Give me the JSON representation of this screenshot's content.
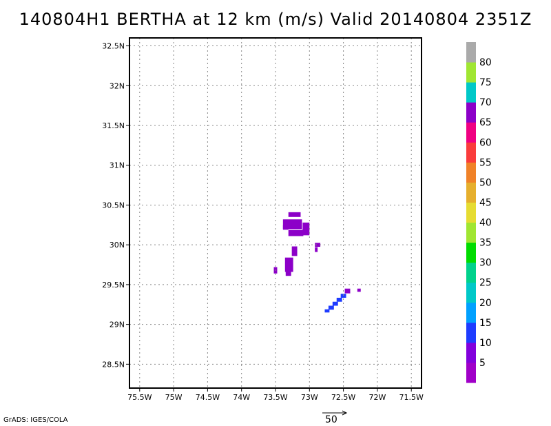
{
  "title": "140804H1 BERTHA at 12 km (m/s) Valid 20140804 2351Z",
  "credit": "GrADS: IGES/COLA",
  "reference_vector_label": "50",
  "map": {
    "lon_range": [
      -75.65,
      -71.35
    ],
    "lat_range": [
      28.2,
      32.6
    ],
    "lon_ticks": [
      {
        "value": -75.5,
        "label": "75.5W"
      },
      {
        "value": -75,
        "label": "75W"
      },
      {
        "value": -74.5,
        "label": "74.5W"
      },
      {
        "value": -74,
        "label": "74W"
      },
      {
        "value": -73.5,
        "label": "73.5W"
      },
      {
        "value": -73,
        "label": "73W"
      },
      {
        "value": -72.5,
        "label": "72.5W"
      },
      {
        "value": -72,
        "label": "72W"
      },
      {
        "value": -71.5,
        "label": "71.5W"
      }
    ],
    "lat_ticks": [
      {
        "value": 28.5,
        "label": "28.5N"
      },
      {
        "value": 29,
        "label": "29N"
      },
      {
        "value": 29.5,
        "label": "29.5N"
      },
      {
        "value": 30,
        "label": "30N"
      },
      {
        "value": 30.5,
        "label": "30.5N"
      },
      {
        "value": 31,
        "label": "31N"
      },
      {
        "value": 31.5,
        "label": "31.5N"
      },
      {
        "value": 32,
        "label": "32N"
      },
      {
        "value": 32.5,
        "label": "32.5N"
      }
    ],
    "grid": true
  },
  "colorbar": {
    "labels": [
      "5",
      "10",
      "15",
      "20",
      "25",
      "30",
      "35",
      "40",
      "45",
      "50",
      "55",
      "60",
      "65",
      "70",
      "75",
      "80"
    ],
    "colors": [
      "#a000c8",
      "#8200dc",
      "#1e3cff",
      "#00a0ff",
      "#00c8c8",
      "#00d28c",
      "#00dc00",
      "#a0e632",
      "#e6dc32",
      "#e6af2d",
      "#f08228",
      "#fa3c3c",
      "#f00082",
      "#8c00c8",
      "#00c8c8",
      "#a0e632",
      "#aaaaaa"
    ]
  },
  "wind_field": {
    "units": "m/s",
    "cells": [
      {
        "lon": -73.22,
        "lat": 30.38,
        "w": 0.18,
        "h": 0.06,
        "color": "#8c00c8"
      },
      {
        "lon": -73.25,
        "lat": 30.26,
        "w": 0.28,
        "h": 0.12,
        "color": "#8c00c8"
      },
      {
        "lon": -73.35,
        "lat": 30.22,
        "w": 0.08,
        "h": 0.06,
        "color": "#8c00c8"
      },
      {
        "lon": -73.2,
        "lat": 30.15,
        "w": 0.22,
        "h": 0.08,
        "color": "#8c00c8"
      },
      {
        "lon": -73.05,
        "lat": 30.2,
        "w": 0.1,
        "h": 0.16,
        "color": "#8c00c8"
      },
      {
        "lon": -72.88,
        "lat": 30.0,
        "w": 0.08,
        "h": 0.05,
        "color": "#8c00c8"
      },
      {
        "lon": -72.9,
        "lat": 29.94,
        "w": 0.04,
        "h": 0.06,
        "color": "#8c00c8"
      },
      {
        "lon": -73.22,
        "lat": 29.92,
        "w": 0.08,
        "h": 0.12,
        "color": "#8c00c8"
      },
      {
        "lon": -73.3,
        "lat": 29.75,
        "w": 0.12,
        "h": 0.18,
        "color": "#8c00c8"
      },
      {
        "lon": -73.31,
        "lat": 29.64,
        "w": 0.08,
        "h": 0.06,
        "color": "#8c00c8"
      },
      {
        "lon": -73.5,
        "lat": 29.68,
        "w": 0.05,
        "h": 0.08,
        "color": "#8c00c8"
      },
      {
        "lon": -72.44,
        "lat": 29.42,
        "w": 0.08,
        "h": 0.06,
        "color": "#8c00c8"
      },
      {
        "lon": -72.27,
        "lat": 29.43,
        "w": 0.05,
        "h": 0.04,
        "color": "#8c00c8"
      },
      {
        "lon": -72.5,
        "lat": 29.36,
        "w": 0.08,
        "h": 0.05,
        "color": "#1e3cff"
      },
      {
        "lon": -72.56,
        "lat": 29.31,
        "w": 0.08,
        "h": 0.05,
        "color": "#1e3cff"
      },
      {
        "lon": -72.62,
        "lat": 29.26,
        "w": 0.08,
        "h": 0.05,
        "color": "#1e3cff"
      },
      {
        "lon": -72.68,
        "lat": 29.21,
        "w": 0.08,
        "h": 0.05,
        "color": "#1e3cff"
      },
      {
        "lon": -72.74,
        "lat": 29.17,
        "w": 0.07,
        "h": 0.04,
        "color": "#1e3cff"
      }
    ]
  }
}
